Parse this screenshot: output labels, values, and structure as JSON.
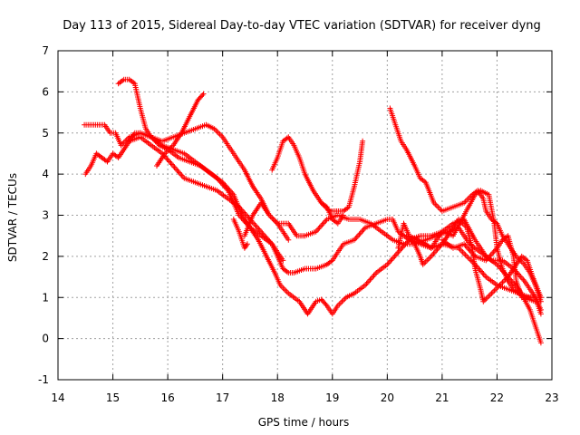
{
  "chart_data": {
    "type": "scatter",
    "title": "Day 113 of 2015, Sidereal Day-to-day VTEC variation (SDTVAR) for receiver dyng",
    "xlabel": "GPS time / hours",
    "ylabel": "SDTVAR / TECUs",
    "xlim": [
      14,
      23
    ],
    "ylim": [
      -1,
      7
    ],
    "xticks": [
      "14",
      "15",
      "16",
      "17",
      "18",
      "19",
      "20",
      "21",
      "22",
      "23"
    ],
    "yticks": [
      "-1",
      "0",
      "1",
      "2",
      "3",
      "4",
      "5",
      "6",
      "7"
    ],
    "grid": true,
    "legend": "none",
    "marker": "plus",
    "color": "#ff0000",
    "series": [
      {
        "points": [
          [
            14.48,
            5.2
          ],
          [
            14.65,
            5.2
          ],
          [
            14.85,
            5.2
          ],
          [
            14.95,
            5.0
          ],
          [
            15.05,
            5.0
          ],
          [
            15.15,
            4.7
          ],
          [
            15.3,
            4.9
          ],
          [
            15.5,
            5.0
          ],
          [
            15.7,
            4.9
          ],
          [
            15.9,
            4.7
          ],
          [
            16.1,
            4.6
          ],
          [
            16.3,
            4.5
          ],
          [
            16.5,
            4.3
          ],
          [
            16.7,
            4.1
          ],
          [
            16.9,
            3.9
          ],
          [
            17.1,
            3.6
          ],
          [
            17.3,
            3.0
          ],
          [
            17.5,
            2.7
          ],
          [
            17.7,
            2.5
          ],
          [
            17.9,
            2.3
          ],
          [
            18.1,
            1.7
          ],
          [
            18.2,
            1.6
          ],
          [
            18.3,
            1.6
          ],
          [
            18.5,
            1.7
          ],
          [
            18.7,
            1.7
          ],
          [
            18.9,
            1.8
          ],
          [
            19.0,
            1.9
          ],
          [
            19.2,
            2.3
          ],
          [
            19.4,
            2.4
          ],
          [
            19.6,
            2.7
          ],
          [
            19.8,
            2.8
          ],
          [
            20.0,
            2.9
          ],
          [
            20.1,
            2.9
          ],
          [
            20.2,
            2.6
          ],
          [
            20.4,
            2.4
          ],
          [
            20.6,
            2.3
          ],
          [
            20.8,
            2.2
          ],
          [
            21.0,
            2.3
          ],
          [
            21.3,
            2.2
          ],
          [
            21.6,
            1.8
          ],
          [
            21.8,
            1.5
          ],
          [
            22.0,
            1.3
          ],
          [
            22.2,
            1.2
          ],
          [
            22.4,
            1.1
          ],
          [
            22.6,
            1.0
          ],
          [
            22.7,
            1.0
          ],
          [
            22.8,
            0.7
          ]
        ]
      },
      {
        "points": [
          [
            14.5,
            4.0
          ],
          [
            14.6,
            4.2
          ],
          [
            14.7,
            4.5
          ],
          [
            14.8,
            4.4
          ],
          [
            14.9,
            4.3
          ],
          [
            15.0,
            4.5
          ],
          [
            15.1,
            4.4
          ],
          [
            15.25,
            4.7
          ],
          [
            15.4,
            5.0
          ],
          [
            15.5,
            5.0
          ],
          [
            15.7,
            4.9
          ],
          [
            15.9,
            4.8
          ],
          [
            16.1,
            4.9
          ],
          [
            16.3,
            5.0
          ],
          [
            16.5,
            5.1
          ],
          [
            16.7,
            5.2
          ],
          [
            16.85,
            5.1
          ],
          [
            17.0,
            4.9
          ],
          [
            17.2,
            4.5
          ],
          [
            17.4,
            4.1
          ],
          [
            17.55,
            3.7
          ],
          [
            17.7,
            3.4
          ],
          [
            17.85,
            3.0
          ],
          [
            18.0,
            2.8
          ],
          [
            18.2,
            2.8
          ],
          [
            18.35,
            2.5
          ],
          [
            18.5,
            2.5
          ],
          [
            18.7,
            2.6
          ],
          [
            18.9,
            2.9
          ],
          [
            19.1,
            3.0
          ],
          [
            19.3,
            2.9
          ],
          [
            19.5,
            2.9
          ],
          [
            19.7,
            2.8
          ],
          [
            19.9,
            2.6
          ],
          [
            20.1,
            2.4
          ],
          [
            20.3,
            2.3
          ],
          [
            20.5,
            2.3
          ],
          [
            20.7,
            2.4
          ],
          [
            20.9,
            2.5
          ],
          [
            21.1,
            2.6
          ],
          [
            21.3,
            2.7
          ],
          [
            21.5,
            2.3
          ],
          [
            21.7,
            2.1
          ],
          [
            21.9,
            1.9
          ],
          [
            22.1,
            1.9
          ],
          [
            22.3,
            1.7
          ],
          [
            22.5,
            1.4
          ],
          [
            22.7,
            1.0
          ],
          [
            22.8,
            0.6
          ]
        ]
      },
      {
        "points": [
          [
            15.1,
            6.2
          ],
          [
            15.2,
            6.3
          ],
          [
            15.3,
            6.3
          ],
          [
            15.4,
            6.2
          ],
          [
            15.5,
            5.6
          ],
          [
            15.6,
            5.1
          ],
          [
            15.7,
            4.9
          ],
          [
            15.85,
            4.7
          ],
          [
            16.0,
            4.6
          ],
          [
            16.2,
            4.4
          ],
          [
            16.4,
            4.3
          ],
          [
            16.6,
            4.2
          ],
          [
            16.8,
            4.0
          ],
          [
            17.0,
            3.8
          ],
          [
            17.2,
            3.5
          ],
          [
            17.35,
            3.0
          ],
          [
            17.5,
            2.7
          ],
          [
            17.65,
            2.4
          ],
          [
            17.8,
            2.0
          ],
          [
            17.95,
            1.6
          ],
          [
            18.05,
            1.3
          ],
          [
            18.2,
            1.1
          ],
          [
            18.4,
            0.9
          ],
          [
            18.55,
            0.6
          ],
          [
            18.7,
            0.9
          ],
          [
            18.8,
            0.95
          ],
          [
            18.9,
            0.8
          ],
          [
            19.0,
            0.6
          ],
          [
            19.1,
            0.8
          ],
          [
            19.25,
            1.0
          ],
          [
            19.4,
            1.1
          ],
          [
            19.6,
            1.3
          ],
          [
            19.8,
            1.6
          ],
          [
            20.0,
            1.8
          ],
          [
            20.2,
            2.1
          ],
          [
            20.4,
            2.4
          ],
          [
            20.6,
            2.5
          ],
          [
            20.8,
            2.5
          ],
          [
            21.0,
            2.6
          ],
          [
            21.2,
            2.8
          ],
          [
            21.4,
            2.9
          ],
          [
            21.6,
            2.4
          ],
          [
            21.8,
            2.0
          ],
          [
            22.0,
            1.8
          ],
          [
            22.2,
            1.5
          ],
          [
            22.4,
            1.2
          ],
          [
            22.6,
            0.7
          ],
          [
            22.7,
            0.3
          ],
          [
            22.8,
            -0.1
          ]
        ]
      },
      {
        "points": [
          [
            15.3,
            4.8
          ],
          [
            15.5,
            4.9
          ],
          [
            15.7,
            4.7
          ],
          [
            15.9,
            4.5
          ],
          [
            16.1,
            4.2
          ],
          [
            16.3,
            3.9
          ],
          [
            16.5,
            3.8
          ],
          [
            16.7,
            3.7
          ],
          [
            16.9,
            3.6
          ],
          [
            17.1,
            3.4
          ],
          [
            17.3,
            3.2
          ],
          [
            17.5,
            2.9
          ],
          [
            17.7,
            2.6
          ],
          [
            17.9,
            2.3
          ],
          [
            18.0,
            2.1
          ],
          [
            18.1,
            1.9
          ]
        ]
      },
      {
        "points": [
          [
            15.8,
            4.2
          ],
          [
            15.95,
            4.5
          ],
          [
            16.1,
            4.7
          ],
          [
            16.25,
            5.0
          ],
          [
            16.4,
            5.4
          ],
          [
            16.55,
            5.8
          ],
          [
            16.65,
            5.95
          ]
        ]
      },
      {
        "points": [
          [
            17.2,
            2.9
          ],
          [
            17.3,
            2.6
          ],
          [
            17.4,
            2.2
          ],
          [
            17.45,
            2.3
          ]
        ]
      },
      {
        "points": [
          [
            17.4,
            2.5
          ],
          [
            17.55,
            3.0
          ],
          [
            17.7,
            3.3
          ],
          [
            17.85,
            3.0
          ],
          [
            18.0,
            2.8
          ],
          [
            18.1,
            2.6
          ],
          [
            18.2,
            2.4
          ]
        ]
      },
      {
        "points": [
          [
            17.9,
            4.1
          ],
          [
            18.0,
            4.4
          ],
          [
            18.1,
            4.8
          ],
          [
            18.2,
            4.9
          ],
          [
            18.3,
            4.7
          ],
          [
            18.4,
            4.4
          ],
          [
            18.5,
            4.0
          ],
          [
            18.65,
            3.6
          ],
          [
            18.8,
            3.3
          ],
          [
            18.95,
            3.1
          ],
          [
            19.05,
            3.1
          ],
          [
            19.2,
            3.1
          ],
          [
            19.3,
            3.2
          ],
          [
            19.4,
            3.7
          ],
          [
            19.5,
            4.3
          ],
          [
            19.55,
            4.8
          ]
        ]
      },
      {
        "points": [
          [
            18.8,
            3.3
          ],
          [
            18.9,
            3.2
          ],
          [
            19.0,
            2.9
          ],
          [
            19.1,
            2.8
          ],
          [
            19.2,
            3.0
          ]
        ]
      },
      {
        "points": [
          [
            20.05,
            5.6
          ],
          [
            20.15,
            5.2
          ],
          [
            20.25,
            4.8
          ],
          [
            20.35,
            4.6
          ],
          [
            20.5,
            4.2
          ],
          [
            20.6,
            3.9
          ],
          [
            20.7,
            3.8
          ],
          [
            20.85,
            3.3
          ],
          [
            21.0,
            3.1
          ],
          [
            21.2,
            3.2
          ],
          [
            21.4,
            3.3
          ],
          [
            21.55,
            3.5
          ],
          [
            21.65,
            3.6
          ],
          [
            21.75,
            3.4
          ],
          [
            21.8,
            3.1
          ],
          [
            21.9,
            2.9
          ],
          [
            22.0,
            2.8
          ],
          [
            22.1,
            2.5
          ],
          [
            22.2,
            2.3
          ],
          [
            22.35,
            2.0
          ],
          [
            22.5,
            1.8
          ],
          [
            22.6,
            1.6
          ],
          [
            22.7,
            1.3
          ],
          [
            22.8,
            0.9
          ]
        ]
      },
      {
        "points": [
          [
            20.2,
            2.2
          ],
          [
            20.3,
            2.8
          ],
          [
            20.4,
            2.5
          ],
          [
            20.55,
            2.4
          ],
          [
            20.7,
            2.3
          ],
          [
            20.8,
            2.2
          ],
          [
            20.9,
            2.4
          ],
          [
            21.0,
            2.6
          ],
          [
            21.2,
            2.5
          ],
          [
            21.4,
            3.0
          ],
          [
            21.6,
            3.5
          ],
          [
            21.7,
            3.6
          ],
          [
            21.85,
            3.5
          ],
          [
            21.95,
            2.8
          ],
          [
            22.0,
            2.2
          ],
          [
            22.1,
            1.7
          ],
          [
            22.2,
            1.4
          ],
          [
            22.3,
            1.2
          ],
          [
            22.5,
            1.0
          ],
          [
            22.7,
            0.9
          ]
        ]
      },
      {
        "points": [
          [
            20.35,
            2.5
          ],
          [
            20.5,
            2.3
          ],
          [
            20.6,
            2.0
          ],
          [
            20.65,
            1.8
          ],
          [
            20.8,
            2.0
          ],
          [
            21.0,
            2.3
          ],
          [
            21.15,
            2.6
          ],
          [
            21.3,
            2.9
          ],
          [
            21.45,
            2.7
          ],
          [
            21.55,
            2.2
          ],
          [
            21.6,
            1.7
          ],
          [
            21.7,
            1.2
          ],
          [
            21.75,
            0.9
          ],
          [
            21.9,
            1.1
          ],
          [
            22.05,
            1.3
          ],
          [
            22.2,
            1.5
          ],
          [
            22.35,
            1.8
          ],
          [
            22.45,
            2.0
          ],
          [
            22.55,
            1.9
          ],
          [
            22.65,
            1.5
          ],
          [
            22.8,
            1.0
          ]
        ]
      },
      {
        "points": [
          [
            21.0,
            2.4
          ],
          [
            21.2,
            2.2
          ],
          [
            21.4,
            2.3
          ],
          [
            21.6,
            2.0
          ],
          [
            21.8,
            1.9
          ],
          [
            22.0,
            2.2
          ],
          [
            22.1,
            2.4
          ],
          [
            22.2,
            2.5
          ],
          [
            22.3,
            2.0
          ],
          [
            22.35,
            1.4
          ],
          [
            22.45,
            1.0
          ],
          [
            22.55,
            1.0
          ],
          [
            22.7,
            1.0
          ]
        ]
      }
    ]
  }
}
